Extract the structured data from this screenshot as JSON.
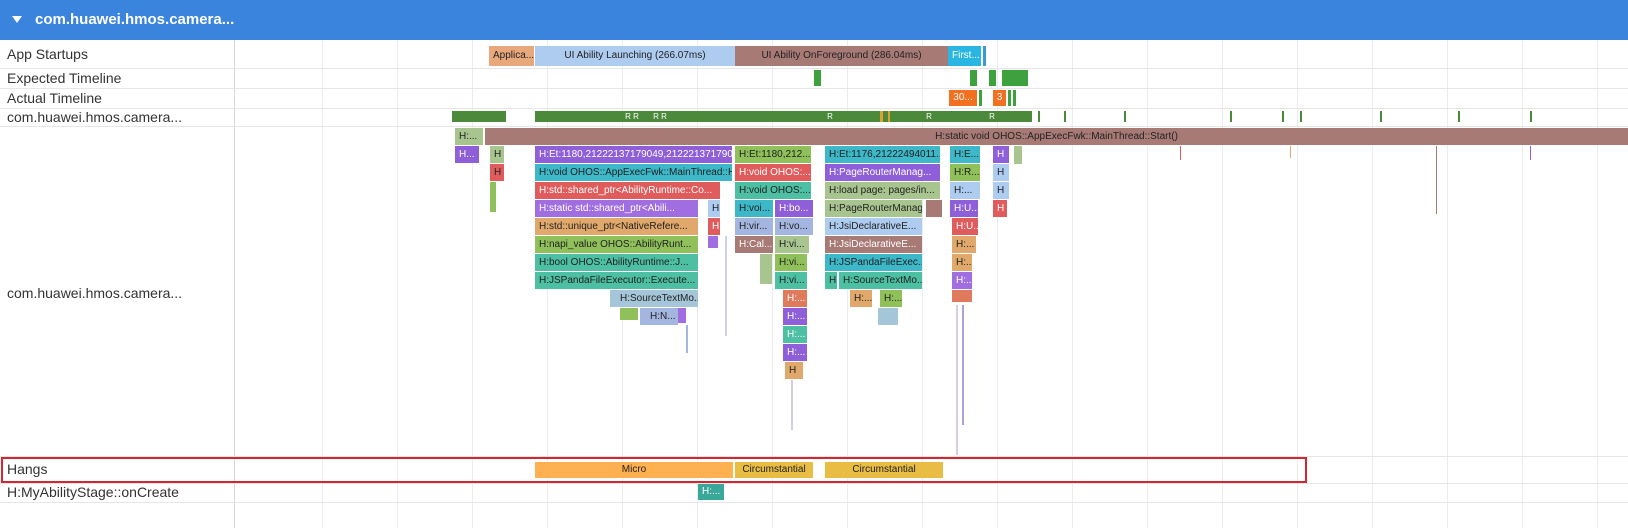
{
  "process_header": {
    "title": "com.huawei.hmos.camera..."
  },
  "tracks": {
    "app_startups": "App Startups",
    "expected_timeline": "Expected Timeline",
    "actual_timeline": "Actual Timeline",
    "process_overview": "com.huawei.hmos.camera...",
    "main_thread": "com.huawei.hmos.camera...",
    "hangs": "Hangs",
    "my_ability_stage": "H:MyAbilityStage::onCreate"
  },
  "startups": {
    "application": "Applica...",
    "launching": "UI Ability Launching (266.07ms)",
    "foreground": "UI Ability OnForeground (286.04ms)",
    "first": "First..."
  },
  "actual_frames": {
    "frame_30": "30...",
    "frame_3": "3"
  },
  "overview_marks": {
    "r1": "R",
    "r2": "R",
    "r3": "R",
    "r4": "R",
    "r5": "R",
    "r6": "R",
    "r7": "R"
  },
  "slices": {
    "root_start": "H:static void OHOS::AppExecFwk::MainThread::Start()",
    "h_left": "H:...",
    "h_left2": "H...",
    "h_small": "H",
    "h_small2": "H",
    "c1_1": "H:Et:1180,2122213717904​9,21222137179​04...",
    "c1_2": "H:void OHOS::AppExecFwk::MainThread::H...",
    "c1_3": "H:std::shared_ptr<AbilityRuntime::Co...",
    "c1_4": "H:static std::shared_ptr<Abili...",
    "c1_5": "H:std::unique_ptr<NativeRefere...",
    "c1_6": "H:napi_value OHOS::AbilityRunt...",
    "c1_7": "H:bool OHOS::AbilityRuntime::J...",
    "c1_8": "H:JSPandaFileExecutor::Execute...",
    "c1_9": "H:SourceTextMo...",
    "c1_10": "H:N...",
    "c1_h1": "H",
    "c1_h2": "H",
    "c2_1": "H:Et:1180,212...",
    "c2_2": "H:void OHOS:...",
    "c2_3": "H:void OHOS:...",
    "c2_4": "H:voi...",
    "c2_4b": "H:bo...",
    "c2_5": "H:vir...",
    "c2_5b": "H:vo...",
    "c2_6": "H:Cal...",
    "c2_6b": "H:vi...",
    "c2_7": "H:vi...",
    "c2_8": "H:vi...",
    "c2_9": "H:...",
    "c2_10": "H:...",
    "c2_11": "H:...",
    "c2_12": "H:...",
    "c2_13": "H",
    "c3_1": "H:Et:1176,21222494011...",
    "c3_2": "H:PageRouterManag...",
    "c3_3": "H:load page: pages/in...",
    "c3_4": "H:PageRouterManag...",
    "c3_5": "H:JsiDeclarativeE...",
    "c3_6": "H:JsiDeclarativeE...",
    "c3_7": "H:JSPandaFileExec...",
    "c3_8a": "H",
    "c3_8": "H:SourceTextMo...",
    "c3_9": "H:...",
    "c3_10": "H:...",
    "c4_1": "H:E...",
    "c4_1b": "H",
    "c4_2": "H:R...",
    "c4_2b": "H",
    "c4_3": "H:...",
    "c4_3b": "H",
    "c4_4": "H:U...",
    "c4_4b": "H",
    "c4_5": "H:U...",
    "c4_6": "H:...",
    "c4_7": "H:...",
    "c4_8": "H:..."
  },
  "hangs": {
    "micro": "Micro",
    "circ1": "Circumstantial",
    "circ2": "Circumstantial"
  },
  "ability_stage": {
    "slice": "H:..."
  },
  "colors": {
    "header": "#3b84dd",
    "launching": "#aecbf0",
    "foreground": "#a87a76",
    "first": "#29b6e3",
    "expected": "#3da23e",
    "actual_late": "#f37021",
    "hang_micro": "#ffb050",
    "hang_circumstantial": "#e9bd44",
    "highlight_box": "#d4262f"
  }
}
